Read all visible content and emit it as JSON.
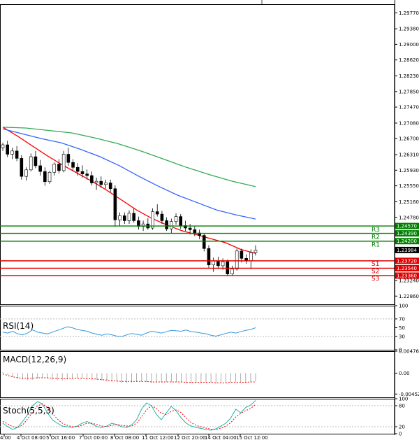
{
  "chart_data": {
    "type": "candlestick",
    "symbol_note": "",
    "price_axis": {
      "ylim": [
        1.2266,
        1.2998
      ],
      "ticks": [
        "1.29770",
        "1.29380",
        "1.29000",
        "1.28620",
        "1.28230",
        "1.27850",
        "1.27470",
        "1.27080",
        "1.26700",
        "1.26310",
        "1.25930",
        "1.25550",
        "1.25160",
        "1.24780",
        "1.23984",
        "1.23240",
        "1.22860"
      ]
    },
    "x_axis": {
      "ticks": [
        "4:00",
        "4 Oct 08:00",
        "5 Oct 16:00",
        "7 Oct 00:00",
        "8 Oct 08:00",
        "11 Oct 12:00",
        "12 Oct 20:00",
        "14 Oct 04:00",
        "15 Oct 12:00"
      ]
    },
    "levels": [
      {
        "name": "R3",
        "value": 1.2457,
        "label": "1.24570",
        "color": "#008000"
      },
      {
        "name": "R2",
        "value": 1.2439,
        "label": "1.24390",
        "color": "#008000"
      },
      {
        "name": "R1",
        "value": 1.242,
        "label": "1.24200",
        "color": "#008000"
      },
      {
        "name": "S1",
        "value": 1.2372,
        "label": "1.23720",
        "color": "#e00000"
      },
      {
        "name": "S2",
        "value": 1.2354,
        "label": "1.23540",
        "color": "#e00000"
      },
      {
        "name": "S3",
        "value": 1.2336,
        "label": "1.23360",
        "color": "#e00000"
      }
    ],
    "current_price": {
      "value": 1.23984,
      "label": "1.23984"
    },
    "moving_averages": [
      {
        "color": "#ff0000",
        "values": [
          1.2698,
          1.2676,
          1.2652,
          1.2628,
          1.2606,
          1.2586,
          1.2566,
          1.2544,
          1.252,
          1.2496,
          1.2476,
          1.246,
          1.2446,
          1.2436,
          1.2426,
          1.2416,
          1.24,
          1.239
        ]
      },
      {
        "color": "#3366ff",
        "values": [
          1.2694,
          1.2682,
          1.267,
          1.266,
          1.2644,
          1.2626,
          1.2604,
          1.2578,
          1.2554,
          1.2532,
          1.2514,
          1.2496,
          1.2484,
          1.2474
        ]
      },
      {
        "color": "#33aa55",
        "values": [
          1.2698,
          1.2696,
          1.269,
          1.2684,
          1.2672,
          1.2658,
          1.264,
          1.262,
          1.26,
          1.2582,
          1.2566,
          1.2553
        ]
      }
    ],
    "candles": [
      [
        1.2648,
        1.266,
        1.264,
        1.2655
      ],
      [
        1.2655,
        1.2665,
        1.2625,
        1.2632
      ],
      [
        1.2632,
        1.2648,
        1.262,
        1.264
      ],
      [
        1.264,
        1.2652,
        1.2615,
        1.2622
      ],
      [
        1.2622,
        1.263,
        1.257,
        1.2578
      ],
      [
        1.2578,
        1.26,
        1.2568,
        1.2594
      ],
      [
        1.2594,
        1.2634,
        1.259,
        1.2626
      ],
      [
        1.2626,
        1.264,
        1.2598,
        1.2604
      ],
      [
        1.2604,
        1.2618,
        1.258,
        1.259
      ],
      [
        1.259,
        1.26,
        1.2555,
        1.2565
      ],
      [
        1.2565,
        1.2592,
        1.256,
        1.2588
      ],
      [
        1.2588,
        1.2612,
        1.258,
        1.2608
      ],
      [
        1.2608,
        1.262,
        1.2585,
        1.2592
      ],
      [
        1.2592,
        1.264,
        1.2588,
        1.2632
      ],
      [
        1.2632,
        1.2648,
        1.2604,
        1.2612
      ],
      [
        1.2612,
        1.262,
        1.2592,
        1.26
      ],
      [
        1.26,
        1.261,
        1.258,
        1.259
      ],
      [
        1.259,
        1.2605,
        1.2575,
        1.2584
      ],
      [
        1.2584,
        1.2595,
        1.257,
        1.258
      ],
      [
        1.258,
        1.259,
        1.2556,
        1.2562
      ],
      [
        1.2562,
        1.2575,
        1.2545,
        1.2566
      ],
      [
        1.2566,
        1.2578,
        1.255,
        1.2558
      ],
      [
        1.2558,
        1.257,
        1.2548,
        1.2562
      ],
      [
        1.2562,
        1.257,
        1.254,
        1.2548
      ],
      [
        1.2548,
        1.2556,
        1.2455,
        1.2472
      ],
      [
        1.2472,
        1.249,
        1.2458,
        1.2482
      ],
      [
        1.2482,
        1.249,
        1.2462,
        1.247
      ],
      [
        1.247,
        1.2495,
        1.2462,
        1.2488
      ],
      [
        1.2488,
        1.25,
        1.2465,
        1.247
      ],
      [
        1.247,
        1.248,
        1.2448,
        1.2456
      ],
      [
        1.2456,
        1.247,
        1.2445,
        1.2462
      ],
      [
        1.2462,
        1.2476,
        1.2448,
        1.2452
      ],
      [
        1.2452,
        1.25,
        1.2448,
        1.2492
      ],
      [
        1.2492,
        1.251,
        1.248,
        1.2486
      ],
      [
        1.2486,
        1.2494,
        1.2462,
        1.247
      ],
      [
        1.247,
        1.2478,
        1.2445,
        1.245
      ],
      [
        1.245,
        1.2475,
        1.244,
        1.2468
      ],
      [
        1.2468,
        1.2488,
        1.246,
        1.248
      ],
      [
        1.248,
        1.2486,
        1.245,
        1.2458
      ],
      [
        1.2458,
        1.247,
        1.2445,
        1.2452
      ],
      [
        1.2452,
        1.2462,
        1.2436,
        1.2448
      ],
      [
        1.2448,
        1.2456,
        1.2432,
        1.244
      ],
      [
        1.244,
        1.2448,
        1.2425,
        1.2434
      ],
      [
        1.2434,
        1.244,
        1.2395,
        1.2402
      ],
      [
        1.2402,
        1.241,
        1.2355,
        1.2362
      ],
      [
        1.2362,
        1.238,
        1.2345,
        1.2372
      ],
      [
        1.2372,
        1.2382,
        1.2352,
        1.236
      ],
      [
        1.236,
        1.2378,
        1.235,
        1.237
      ],
      [
        1.237,
        1.2375,
        1.2335,
        1.234
      ],
      [
        1.234,
        1.236,
        1.2335,
        1.2352
      ],
      [
        1.2352,
        1.2402,
        1.2348,
        1.2396
      ],
      [
        1.2396,
        1.2402,
        1.2368,
        1.2378
      ],
      [
        1.2378,
        1.2388,
        1.2365,
        1.2372
      ],
      [
        1.2372,
        1.24,
        1.2352,
        1.2392
      ],
      [
        1.2392,
        1.241,
        1.2385,
        1.2398
      ]
    ],
    "rsi": {
      "label": "RSI(14)",
      "ylim": [
        0,
        100
      ],
      "ticks": [
        "100",
        "70",
        "50",
        "30",
        "0"
      ],
      "values": [
        40,
        38,
        42,
        36,
        34,
        38,
        45,
        40,
        38,
        36,
        40,
        44,
        48,
        52,
        50,
        46,
        44,
        42,
        38,
        35,
        33,
        36,
        34,
        31,
        30,
        34,
        37,
        35,
        33,
        38,
        42,
        40,
        38,
        41,
        44,
        43,
        42,
        45,
        41,
        40,
        38,
        36,
        33,
        31,
        34,
        37,
        40,
        38,
        41,
        44,
        46,
        50
      ]
    },
    "macd": {
      "label": "MACD(12,26,9)",
      "ylim": [
        -0.00524,
        0.00476
      ],
      "ticks": [
        "0.00476",
        "0.00",
        "-0.004524"
      ],
      "histogram": [
        0.0002,
        -0.0004,
        -0.0008,
        -0.0012,
        -0.0014,
        -0.0015,
        -0.0014,
        -0.0012,
        -0.0011,
        -0.0012,
        -0.0014,
        -0.0015,
        -0.0016,
        -0.0014,
        -0.0012,
        -0.0011,
        -0.0012,
        -0.0014,
        -0.0015,
        -0.0015,
        -0.0016,
        -0.0018,
        -0.0019,
        -0.002,
        -0.0021,
        -0.0021,
        -0.002,
        -0.0019,
        -0.0019,
        -0.002,
        -0.0021,
        -0.0021,
        -0.002,
        -0.0019,
        -0.0019,
        -0.0019,
        -0.002,
        -0.0021,
        -0.0022,
        -0.0022,
        -0.0021,
        -0.002,
        -0.0021,
        -0.0022,
        -0.0022,
        -0.0021,
        -0.002,
        -0.0019,
        -0.0019,
        -0.002,
        -0.0019,
        -0.0018
      ],
      "signal": [
        -0.0002,
        -0.0005,
        -0.0008,
        -0.001,
        -0.0011,
        -0.0011,
        -0.0011,
        -0.001,
        -0.001,
        -0.001,
        -0.0011,
        -0.0012,
        -0.0012,
        -0.0012,
        -0.0011,
        -0.0011,
        -0.0011,
        -0.0012,
        -0.0012,
        -0.0013,
        -0.0014,
        -0.0015,
        -0.0016,
        -0.0017,
        -0.0018,
        -0.0018,
        -0.0018,
        -0.0018,
        -0.0018,
        -0.0018,
        -0.0019,
        -0.0019,
        -0.0019,
        -0.0019,
        -0.0019,
        -0.0019,
        -0.0019,
        -0.002,
        -0.002,
        -0.002,
        -0.002,
        -0.002,
        -0.002,
        -0.0021,
        -0.0021,
        -0.0021,
        -0.002,
        -0.002,
        -0.002,
        -0.002,
        -0.0019,
        -0.0019
      ]
    },
    "stoch": {
      "label": "Stoch(5,5,3)",
      "ylim": [
        0,
        100
      ],
      "ticks": [
        "100",
        "80",
        "20",
        "0"
      ],
      "k": [
        30,
        20,
        12,
        18,
        35,
        55,
        80,
        92,
        85,
        60,
        40,
        30,
        22,
        20,
        18,
        22,
        30,
        35,
        28,
        20,
        18,
        22,
        30,
        26,
        20,
        18,
        25,
        40,
        70,
        88,
        80,
        55,
        40,
        60,
        78,
        65,
        45,
        30,
        22,
        18,
        15,
        12,
        10,
        14,
        22,
        30,
        45,
        70,
        60,
        75,
        82,
        95
      ],
      "d": [
        35,
        28,
        20,
        18,
        25,
        42,
        62,
        80,
        85,
        75,
        58,
        42,
        30,
        24,
        20,
        20,
        24,
        30,
        30,
        26,
        22,
        20,
        24,
        26,
        24,
        22,
        22,
        30,
        48,
        68,
        80,
        72,
        58,
        55,
        64,
        68,
        60,
        45,
        32,
        24,
        20,
        16,
        13,
        12,
        16,
        22,
        32,
        48,
        58,
        66,
        72,
        84
      ]
    }
  }
}
